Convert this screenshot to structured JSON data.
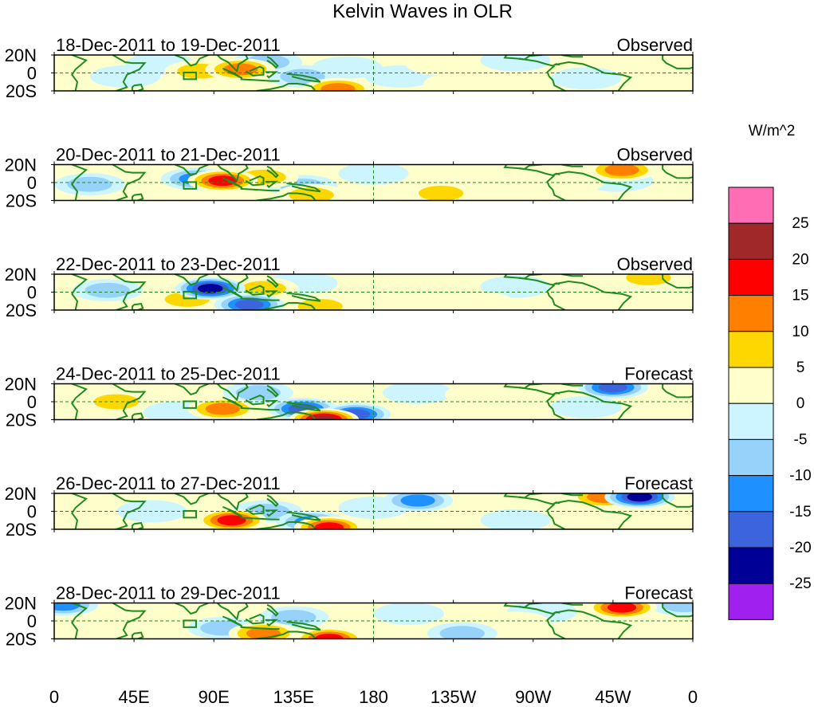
{
  "chart_data": {
    "type": "heatmap",
    "title": "Kelvin Waves in OLR",
    "colorbar": {
      "units": "W/m^2",
      "tick_labels": [
        "25",
        "20",
        "15",
        "10",
        "5",
        "0",
        "-5",
        "-10",
        "-15",
        "-20",
        "-25"
      ],
      "colors_top_to_bottom": [
        "#ff6eb4",
        "#a02828",
        "#ff0000",
        "#ff7f00",
        "#ffd700",
        "#ffffcc",
        "#ccf5ff",
        "#96d2fa",
        "#1e90ff",
        "#3c64dc",
        "#000096",
        "#a020f0"
      ]
    },
    "x_ticks": [
      "0",
      "45E",
      "90E",
      "135E",
      "180",
      "135W",
      "90W",
      "45W",
      "0"
    ],
    "y_ticks": [
      "20N",
      "0",
      "20S"
    ],
    "x_range_deg_east": [
      0,
      360
    ],
    "y_range_deg": [
      -20,
      20
    ],
    "panels": [
      {
        "date_range": "18-Dec-2011 to 19-Dec-2011",
        "status": "Observed",
        "anomalies": [
          {
            "lon": 105,
            "lat": 4,
            "value": 18
          },
          {
            "lon": 82,
            "lat": 2,
            "value": 12
          },
          {
            "lon": 120,
            "lat": 12,
            "value": -12
          },
          {
            "lon": 140,
            "lat": -4,
            "value": -10
          },
          {
            "lon": 160,
            "lat": -18,
            "value": 18
          },
          {
            "lon": 195,
            "lat": -4,
            "value": -6
          },
          {
            "lon": 228,
            "lat": -12,
            "value": 8
          },
          {
            "lon": 218,
            "lat": 10,
            "value": 7
          },
          {
            "lon": 165,
            "lat": 6,
            "value": -5
          },
          {
            "lon": 40,
            "lat": -4,
            "value": -7
          },
          {
            "lon": 300,
            "lat": -6,
            "value": -8
          },
          {
            "lon": 335,
            "lat": 8,
            "value": 6
          },
          {
            "lon": 260,
            "lat": 14,
            "value": -4
          },
          {
            "lon": 60,
            "lat": 10,
            "value": -5
          }
        ]
      },
      {
        "date_range": "20-Dec-2011 to 21-Dec-2011",
        "status": "Observed",
        "anomalies": [
          {
            "lon": 118,
            "lat": 6,
            "value": 14
          },
          {
            "lon": 95,
            "lat": 2,
            "value": 20
          },
          {
            "lon": 80,
            "lat": 4,
            "value": -16
          },
          {
            "lon": 140,
            "lat": -4,
            "value": -11
          },
          {
            "lon": 145,
            "lat": -14,
            "value": 12
          },
          {
            "lon": 218,
            "lat": -12,
            "value": 12
          },
          {
            "lon": 320,
            "lat": 14,
            "value": 15
          },
          {
            "lon": 318,
            "lat": 2,
            "value": -8
          },
          {
            "lon": 290,
            "lat": 0,
            "value": 8
          },
          {
            "lon": 20,
            "lat": -2,
            "value": -10
          },
          {
            "lon": 180,
            "lat": 10,
            "value": -5
          },
          {
            "lon": 250,
            "lat": -6,
            "value": 6
          },
          {
            "lon": 60,
            "lat": -12,
            "value": 7
          }
        ]
      },
      {
        "date_range": "22-Dec-2011 to 23-Dec-2011",
        "status": "Observed",
        "anomalies": [
          {
            "lon": 88,
            "lat": 4,
            "value": -26
          },
          {
            "lon": 110,
            "lat": -14,
            "value": -24
          },
          {
            "lon": 118,
            "lat": 4,
            "value": 14
          },
          {
            "lon": 75,
            "lat": -8,
            "value": 12
          },
          {
            "lon": 150,
            "lat": -16,
            "value": 12
          },
          {
            "lon": 140,
            "lat": 10,
            "value": -8
          },
          {
            "lon": 190,
            "lat": -8,
            "value": 9
          },
          {
            "lon": 240,
            "lat": -12,
            "value": 8
          },
          {
            "lon": 335,
            "lat": 16,
            "value": 11
          },
          {
            "lon": 330,
            "lat": -12,
            "value": 9
          },
          {
            "lon": 30,
            "lat": 2,
            "value": -12
          },
          {
            "lon": 260,
            "lat": 6,
            "value": -5
          }
        ]
      },
      {
        "date_range": "24-Dec-2011 to 25-Dec-2011",
        "status": "Forecast",
        "anomalies": [
          {
            "lon": 140,
            "lat": -8,
            "value": -22
          },
          {
            "lon": 152,
            "lat": -20,
            "value": 28
          },
          {
            "lon": 95,
            "lat": -8,
            "value": 18
          },
          {
            "lon": 115,
            "lat": 10,
            "value": -10
          },
          {
            "lon": 35,
            "lat": 0,
            "value": 12
          },
          {
            "lon": 70,
            "lat": -12,
            "value": -8
          },
          {
            "lon": 170,
            "lat": -14,
            "value": -22
          },
          {
            "lon": 205,
            "lat": 10,
            "value": -7
          },
          {
            "lon": 240,
            "lat": 8,
            "value": 7
          },
          {
            "lon": 315,
            "lat": 16,
            "value": -20
          },
          {
            "lon": 300,
            "lat": -6,
            "value": -8
          },
          {
            "lon": 185,
            "lat": -6,
            "value": 5
          }
        ]
      },
      {
        "date_range": "26-Dec-2011 to 27-Dec-2011",
        "status": "Forecast",
        "anomalies": [
          {
            "lon": 100,
            "lat": -10,
            "value": 20
          },
          {
            "lon": 155,
            "lat": -18,
            "value": 20
          },
          {
            "lon": 120,
            "lat": 0,
            "value": -12
          },
          {
            "lon": 145,
            "lat": -12,
            "value": -15
          },
          {
            "lon": 205,
            "lat": 12,
            "value": -18
          },
          {
            "lon": 310,
            "lat": 16,
            "value": 18
          },
          {
            "lon": 330,
            "lat": 16,
            "value": -28
          },
          {
            "lon": 240,
            "lat": 12,
            "value": 8
          },
          {
            "lon": 55,
            "lat": 0,
            "value": -8
          },
          {
            "lon": 180,
            "lat": 4,
            "value": -6
          },
          {
            "lon": 260,
            "lat": -10,
            "value": -6
          },
          {
            "lon": 20,
            "lat": -12,
            "value": 8
          }
        ]
      },
      {
        "date_range": "28-Dec-2011 to 29-Dec-2011",
        "status": "Forecast",
        "anomalies": [
          {
            "lon": 118,
            "lat": -14,
            "value": 18
          },
          {
            "lon": 155,
            "lat": -20,
            "value": 20
          },
          {
            "lon": 95,
            "lat": -8,
            "value": -14
          },
          {
            "lon": 135,
            "lat": 4,
            "value": -10
          },
          {
            "lon": 320,
            "lat": 15,
            "value": 22
          },
          {
            "lon": 355,
            "lat": 18,
            "value": -12
          },
          {
            "lon": 5,
            "lat": 18,
            "value": -16
          },
          {
            "lon": 230,
            "lat": -14,
            "value": -10
          },
          {
            "lon": 200,
            "lat": 8,
            "value": -7
          },
          {
            "lon": 260,
            "lat": -2,
            "value": 8
          },
          {
            "lon": 40,
            "lat": -4,
            "value": 8
          },
          {
            "lon": 275,
            "lat": 10,
            "value": -5
          }
        ]
      }
    ]
  }
}
